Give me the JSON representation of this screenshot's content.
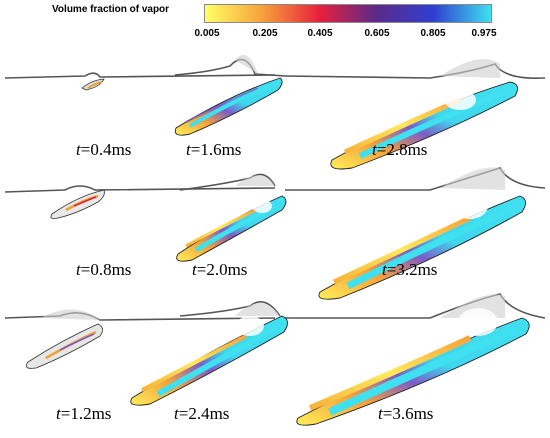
{
  "legend": {
    "title": "Volume fraction of vapor",
    "ticks": [
      "0.005",
      "0.205",
      "0.405",
      "0.605",
      "0.805",
      "0.975"
    ],
    "colors": [
      "#ffff66",
      "#f7a23a",
      "#e8203c",
      "#5a2a8a",
      "#2f3fd0",
      "#3fe0f0"
    ]
  },
  "panels": [
    {
      "t": "t",
      "rest": "=0.4ms"
    },
    {
      "t": "t",
      "rest": "=1.6ms"
    },
    {
      "t": "t",
      "rest": "=2.8ms"
    },
    {
      "t": "t",
      "rest": "=0.8ms"
    },
    {
      "t": "t",
      "rest": "=2.0ms"
    },
    {
      "t": "t",
      "rest": "=3.2ms"
    },
    {
      "t": "t",
      "rest": "=1.2ms"
    },
    {
      "t": "t",
      "rest": "=2.4ms"
    },
    {
      "t": "t",
      "rest": "=3.6ms"
    }
  ]
}
